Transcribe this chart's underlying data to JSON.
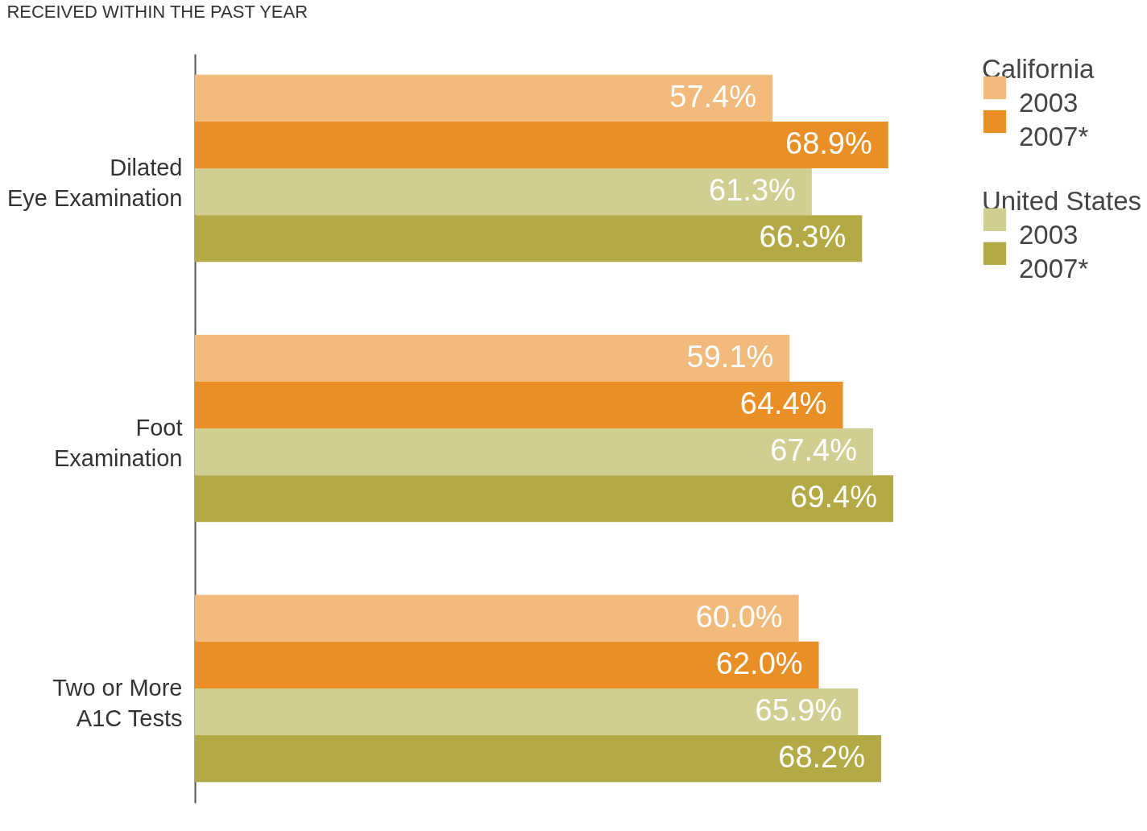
{
  "chart_data": {
    "type": "bar",
    "orientation": "horizontal",
    "title": "RECEIVED WITHIN THE PAST YEAR",
    "categories": [
      "Dilated\nEye Examination",
      "Foot\nExamination",
      "Two or More\nA1C Tests"
    ],
    "series": [
      {
        "name": "2003",
        "color": "#f2bb7c",
        "values": [
          57.4,
          59.1,
          60.0
        ],
        "value_labels": [
          "57.4%",
          "59.1%",
          "60.0%"
        ]
      },
      {
        "name": "2007*",
        "color": "#e98f25",
        "values": [
          68.9,
          64.4,
          62.0
        ],
        "value_labels": [
          "68.9%",
          "64.4%",
          "62.0%"
        ]
      },
      {
        "name": "2003",
        "color": "#d1ce92",
        "values": [
          61.3,
          67.4,
          65.9
        ],
        "value_labels": [
          "61.3%",
          "67.4%",
          "65.9%"
        ]
      },
      {
        "name": "2007*",
        "color": "#b3aa45",
        "values": [
          66.3,
          69.4,
          68.2
        ],
        "value_labels": [
          "66.3%",
          "69.4%",
          "68.2%"
        ]
      }
    ],
    "annotations": [
      "California",
      "United States"
    ],
    "legend": "top right"
  }
}
